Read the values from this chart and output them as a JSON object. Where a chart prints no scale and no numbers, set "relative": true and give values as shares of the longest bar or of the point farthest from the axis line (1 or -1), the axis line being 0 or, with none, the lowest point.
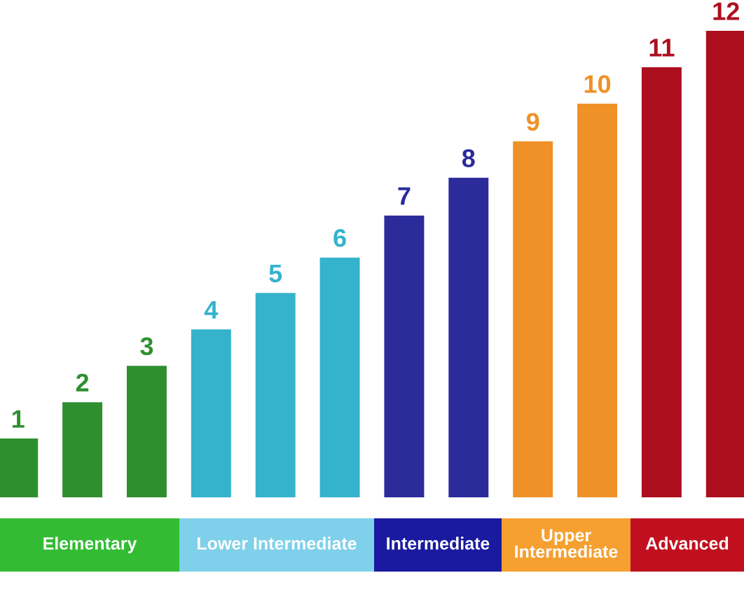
{
  "chart_data": {
    "type": "bar",
    "relative": true,
    "categories": [
      "1",
      "2",
      "3",
      "4",
      "5",
      "6",
      "7",
      "8",
      "9",
      "10",
      "11",
      "12"
    ],
    "values": [
      0.126,
      0.204,
      0.282,
      0.36,
      0.438,
      0.514,
      0.604,
      0.685,
      0.763,
      0.844,
      0.922,
      1
    ],
    "colors": [
      "#2f8f2f",
      "#2f8f2f",
      "#2f8f2f",
      "#35b3cc",
      "#35b3cc",
      "#35b3cc",
      "#2b2b9c",
      "#2b2b9c",
      "#ef9126",
      "#ef9126",
      "#ad0f1e",
      "#ad0f1e"
    ],
    "annotations": [
      "Elementary",
      "Lower Intermediate",
      "Intermediate",
      "Upper\nIntermediate",
      "Advanced"
    ],
    "legend": false
  }
}
